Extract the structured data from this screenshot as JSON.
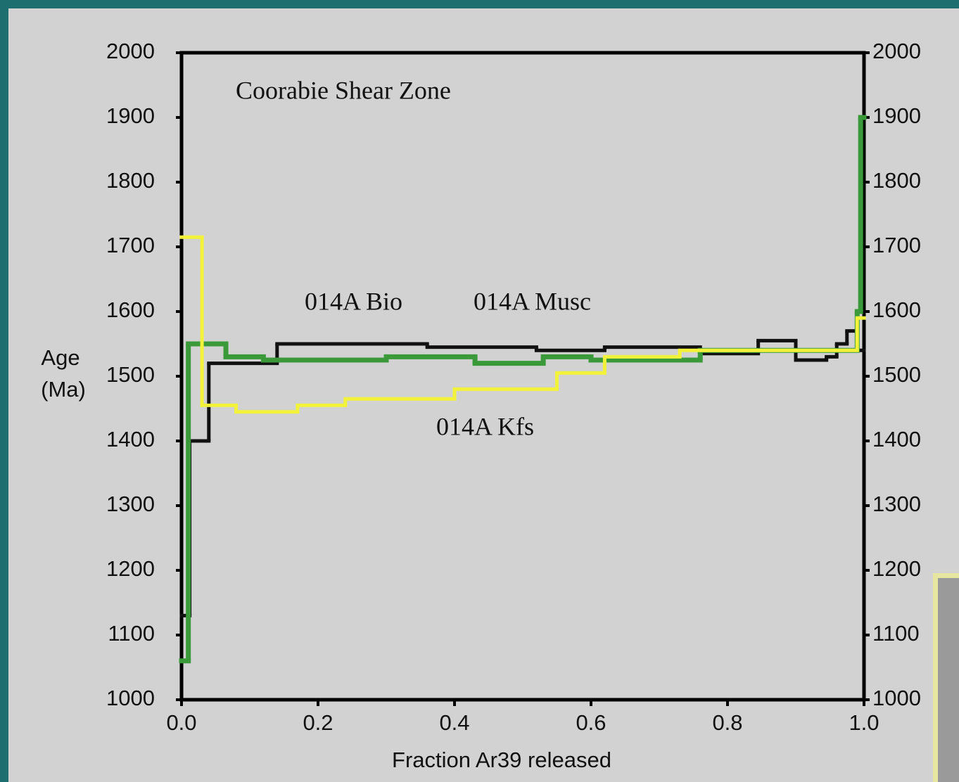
{
  "chart_data": {
    "type": "step",
    "annotations": [
      "Coorabie Shear Zone"
    ],
    "x_label": "Fraction Ar39 released",
    "y_label": [
      "Age",
      "(Ma)"
    ],
    "xlim": [
      0,
      1
    ],
    "xticks": [
      {
        "value": 0,
        "label": "0.0"
      },
      0.2,
      0.4,
      0.6,
      0.8,
      {
        "value": 1,
        "label": "1.0"
      }
    ],
    "ylim": [
      1000,
      2000
    ],
    "yticks": [
      1000,
      1100,
      1200,
      1300,
      1400,
      1500,
      1600,
      1700,
      1800,
      1900,
      2000
    ],
    "y2lim": [
      1000,
      2000
    ],
    "y2ticks": [
      1000,
      1100,
      1200,
      1300,
      1400,
      1500,
      1600,
      1700,
      1800,
      1900,
      2000
    ],
    "series": [
      {
        "name": "014A Bio",
        "color": "#111111",
        "bins": [
          0.0,
          0.012,
          0.04,
          0.14,
          0.36,
          0.52,
          0.62,
          0.76,
          0.845,
          0.9,
          0.945,
          0.96,
          0.975,
          0.99,
          1.0
        ],
        "values": [
          1130,
          1400,
          1520,
          1550,
          1545,
          1540,
          1545,
          1535,
          1555,
          1525,
          1530,
          1550,
          1570,
          1540
        ]
      },
      {
        "name": "014A Musc",
        "color": "#3a9a3a",
        "bins": [
          0.0,
          0.01,
          0.065,
          0.12,
          0.3,
          0.43,
          0.53,
          0.6,
          0.76,
          0.99,
          0.995,
          1.0
        ],
        "values": [
          1060,
          1550,
          1530,
          1525,
          1530,
          1520,
          1530,
          1525,
          1540,
          1600,
          1900
        ]
      },
      {
        "name": "014A Kfs",
        "color": "#f2f23a",
        "bins": [
          0.0,
          0.03,
          0.08,
          0.17,
          0.24,
          0.4,
          0.55,
          0.62,
          0.73,
          0.99,
          1.0
        ],
        "values": [
          1715,
          1455,
          1445,
          1455,
          1465,
          1480,
          1505,
          1530,
          1540,
          1590
        ]
      }
    ]
  }
}
